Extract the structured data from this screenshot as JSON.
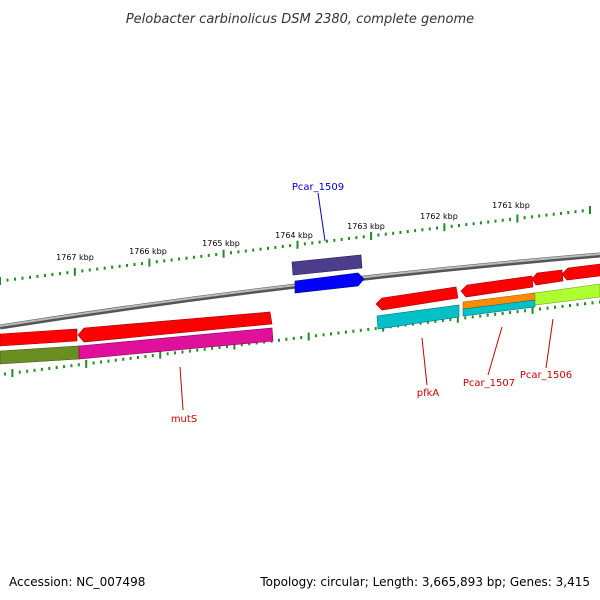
{
  "title": "Pelobacter carbinolicus DSM 2380, complete genome",
  "footer": {
    "accession": "Accession: NC_007498",
    "summary": "Topology: circular; Length: 3,665,893 bp; Genes: 3,415"
  },
  "ticks": [
    {
      "label": "1767 kbp"
    },
    {
      "label": "1766 kbp"
    },
    {
      "label": "1765 kbp"
    },
    {
      "label": "1764 kbp"
    },
    {
      "label": "1763 kbp"
    },
    {
      "label": "1762 kbp"
    },
    {
      "label": "1761 kbp"
    }
  ],
  "gene_labels": [
    {
      "name": "pcar-1509-label",
      "text": "Pcar_1509",
      "color": "#0000cc"
    },
    {
      "name": "muts-label",
      "text": "mutS",
      "color": "#cc0000"
    },
    {
      "name": "pfka-label",
      "text": "pfkA",
      "color": "#cc0000"
    },
    {
      "name": "pcar-1507-label",
      "text": "Pcar_1507",
      "color": "#cc0000"
    },
    {
      "name": "pcar-1506-label",
      "text": "Pcar_1506",
      "color": "#cc0000"
    }
  ],
  "colors": {
    "backbone": "#888888",
    "tick": "#228b22",
    "gene_red": "#ff0000",
    "gene_magenta": "#e0109a",
    "gene_olive": "#6b8e23",
    "gene_cyan": "#00c0c8",
    "gene_navy": "#4b3c8c",
    "gene_blue": "#0000ff",
    "gene_orange": "#ff8c00",
    "gene_lime": "#adff2f"
  }
}
